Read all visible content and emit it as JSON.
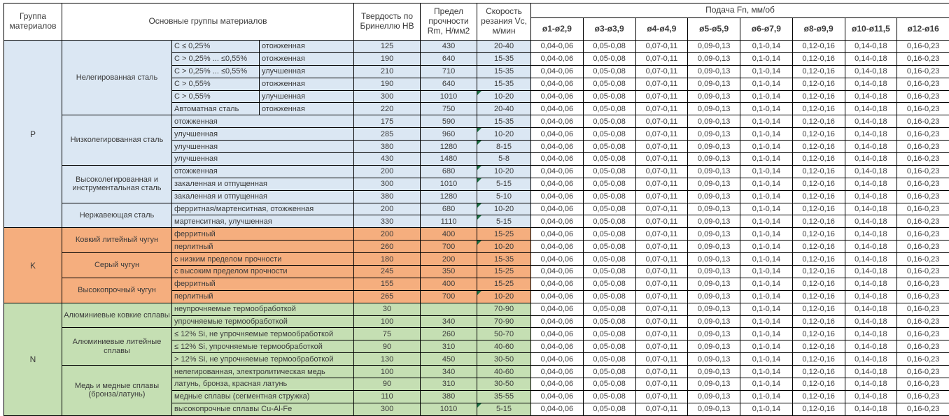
{
  "header": {
    "col_group": "Группа материалов",
    "col_main": "Основные группы материалов",
    "col_hb": "Твердость по Бринеллю HB",
    "col_rm": "Предел прочности Rm, Н/мм2",
    "col_vc": "Скорость резания Vc, м/мин",
    "feed_title": "Подача Fn, мм/об",
    "feed_cols": [
      "ø1-ø2,9",
      "ø3-ø3,9",
      "ø4-ø4,9",
      "ø5-ø5,9",
      "ø6-ø7,9",
      "ø8-ø9,9",
      "ø10-ø11,5",
      "ø12-ø16"
    ]
  },
  "feed_values": [
    "0,04-0,06",
    "0,05-0,08",
    "0,07-0,11",
    "0,09-0,13",
    "0,1-0,14",
    "0,12-0,16",
    "0,14-0,18",
    "0,16-0,23"
  ],
  "colors": {
    "group_p_bg": "#dbe7f3",
    "group_k_bg": "#f5ae7e",
    "group_n_bg": "#c5dfb3",
    "flag_green": "#1f7246"
  },
  "groups": [
    {
      "letter": "P",
      "color_key": "group_p_bg",
      "families": [
        {
          "name": "Нелегированная сталь",
          "split": true,
          "rows": [
            {
              "c1": "C ≤ 0,25%",
              "c2": "отожженная",
              "hb": "125",
              "rm": "430",
              "vc": "20-40",
              "flag": false
            },
            {
              "c1": "C > 0,25% ... ≤0,55%",
              "c2": "отожженная",
              "hb": "190",
              "rm": "640",
              "vc": "15-35",
              "flag": false
            },
            {
              "c1": "C > 0,25% ... ≤0,55%",
              "c2": "улучшенная",
              "hb": "210",
              "rm": "710",
              "vc": "15-35",
              "flag": false
            },
            {
              "c1": "C > 0,55%",
              "c2": "отожженная",
              "hb": "190",
              "rm": "640",
              "vc": "15-35",
              "flag": false
            },
            {
              "c1": "C > 0,55%",
              "c2": "улучшенная",
              "hb": "300",
              "rm": "1010",
              "vc": "10-20",
              "flag": true
            },
            {
              "c1": "Автоматная сталь",
              "c2": "отожженная",
              "hb": "220",
              "rm": "750",
              "vc": "20-40",
              "flag": false
            }
          ]
        },
        {
          "name": "Низколегированная сталь",
          "split": false,
          "rows": [
            {
              "c1": "отожженная",
              "hb": "175",
              "rm": "590",
              "vc": "15-35",
              "flag": false
            },
            {
              "c1": "улучшенная",
              "hb": "285",
              "rm": "960",
              "vc": "10-20",
              "flag": true
            },
            {
              "c1": "улучшенная",
              "hb": "380",
              "rm": "1280",
              "vc": "8-15",
              "flag": true
            },
            {
              "c1": "улучшенная",
              "hb": "430",
              "rm": "1480",
              "vc": "5-8",
              "flag": false
            }
          ]
        },
        {
          "name": "Высоколегированная и инструментальная сталь",
          "split": false,
          "rows": [
            {
              "c1": "отожженная",
              "hb": "200",
              "rm": "680",
              "vc": "10-20",
              "flag": true
            },
            {
              "c1": "закаленная и отпущенная",
              "hb": "300",
              "rm": "1010",
              "vc": "5-15",
              "flag": true
            },
            {
              "c1": "закаленная и отпущенная",
              "hb": "380",
              "rm": "1280",
              "vc": "5-10",
              "flag": false
            }
          ]
        },
        {
          "name": "Нержавеющая сталь",
          "split": false,
          "rows": [
            {
              "c1": "ферритная/мартенситная, отожженная",
              "hb": "200",
              "rm": "680",
              "vc": "10-20",
              "flag": true
            },
            {
              "c1": "мартенситная, улучшенная",
              "hb": "330",
              "rm": "1110",
              "vc": "5-15",
              "flag": true
            }
          ]
        }
      ]
    },
    {
      "letter": "K",
      "color_key": "group_k_bg",
      "families": [
        {
          "name": "Ковкий литейный чугун",
          "split": false,
          "rows": [
            {
              "c1": "ферритный",
              "hb": "200",
              "rm": "400",
              "vc": "15-25",
              "flag": false
            },
            {
              "c1": "перлитный",
              "hb": "260",
              "rm": "700",
              "vc": "10-20",
              "flag": true
            }
          ]
        },
        {
          "name": "Серый чугун",
          "split": false,
          "rows": [
            {
              "c1": "с низким пределом прочности",
              "hb": "180",
              "rm": "200",
              "vc": "15-35",
              "flag": false
            },
            {
              "c1": "с высоким пределом прочности",
              "hb": "245",
              "rm": "350",
              "vc": "15-25",
              "flag": false
            }
          ]
        },
        {
          "name": "Высокопрочный чугун",
          "split": false,
          "rows": [
            {
              "c1": "ферритный",
              "hb": "155",
              "rm": "400",
              "vc": "15-25",
              "flag": false
            },
            {
              "c1": "перлитный",
              "hb": "265",
              "rm": "700",
              "vc": "10-20",
              "flag": true
            }
          ]
        }
      ]
    },
    {
      "letter": "N",
      "color_key": "group_n_bg",
      "families": [
        {
          "name": "Алюминиевые ковкие сплавы",
          "split": false,
          "rows": [
            {
              "c1": "неупрочняемые термообработкой",
              "hb": "30",
              "rm": "",
              "vc": "70-90",
              "flag": false
            },
            {
              "c1": "упрочняемые термообработкой",
              "hb": "100",
              "rm": "340",
              "vc": "70-90",
              "flag": false
            }
          ]
        },
        {
          "name": "Алюминиевые литейные сплавы",
          "split": false,
          "rows": [
            {
              "c1": "≤ 12% Si, не упрочняемые термообработкой",
              "hb": "75",
              "rm": "260",
              "vc": "50-70",
              "flag": false
            },
            {
              "c1": "≤ 12% Si, упрочняемые термообработкой",
              "hb": "90",
              "rm": "310",
              "vc": "40-60",
              "flag": false
            },
            {
              "c1": "> 12% Si, не упрочняемые термообработкой",
              "hb": "130",
              "rm": "450",
              "vc": "30-50",
              "flag": false
            }
          ]
        },
        {
          "name": "Медь и медные сплавы (бронза/латунь)",
          "split": false,
          "rows": [
            {
              "c1": "нелегированная, электролитическая медь",
              "hb": "100",
              "rm": "340",
              "vc": "40-60",
              "flag": false
            },
            {
              "c1": "латунь, бронза, красная латунь",
              "hb": "90",
              "rm": "310",
              "vc": "30-50",
              "flag": false
            },
            {
              "c1": "медные сплавы (сегментная стружка)",
              "hb": "110",
              "rm": "380",
              "vc": "35-55",
              "flag": false
            },
            {
              "c1": "высокопрочные сплавы Cu-Al-Fe",
              "hb": "300",
              "rm": "1010",
              "vc": "5-15",
              "flag": true
            }
          ]
        }
      ]
    }
  ]
}
